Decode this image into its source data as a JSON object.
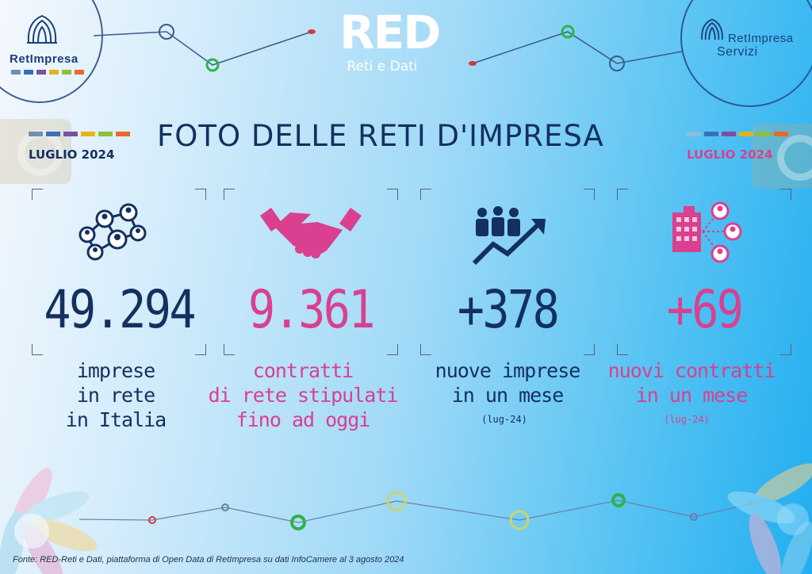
{
  "logos": {
    "left_brand": "RetImpresa",
    "right_brand_line1": "RetImpresa",
    "right_brand_line2": "Servizi",
    "center_brand": "RED",
    "center_tagline": "Reti e Dati"
  },
  "title": "FOTO DELLE RETI D'IMPRESA",
  "date_left": "LUGLIO 2024",
  "date_right": "LUGLIO  2024",
  "colors": {
    "navy": "#13305f",
    "pink": "#d9408f",
    "bar": [
      "#6f8fb0",
      "#3a6fb8",
      "#7b4fa0",
      "#e3b41c",
      "#8fbf3a",
      "#e86a2a"
    ]
  },
  "stats": [
    {
      "icon": "network-people-icon",
      "value": "49.294",
      "label": [
        "imprese",
        "in rete",
        "in Italia"
      ],
      "sub": "",
      "color": "navy"
    },
    {
      "icon": "handshake-icon",
      "value": "9.361",
      "label": [
        "contratti",
        "di rete stipulati",
        "fino ad oggi"
      ],
      "sub": "",
      "color": "pink"
    },
    {
      "icon": "growth-people-icon",
      "value": "+378",
      "label": [
        "nuove imprese",
        "in un mese"
      ],
      "sub": "(lug-24)",
      "color": "navy"
    },
    {
      "icon": "building-network-icon",
      "value": "+69",
      "label": [
        "nuovi contratti",
        "in un mese"
      ],
      "sub": "(lug-24)",
      "color": "pink"
    }
  ],
  "footer": "Fonte: RED-Reti e Dati, piattaforma di Open Data di RetImpresa su dati InfoCamere al 3 agosto 2024"
}
